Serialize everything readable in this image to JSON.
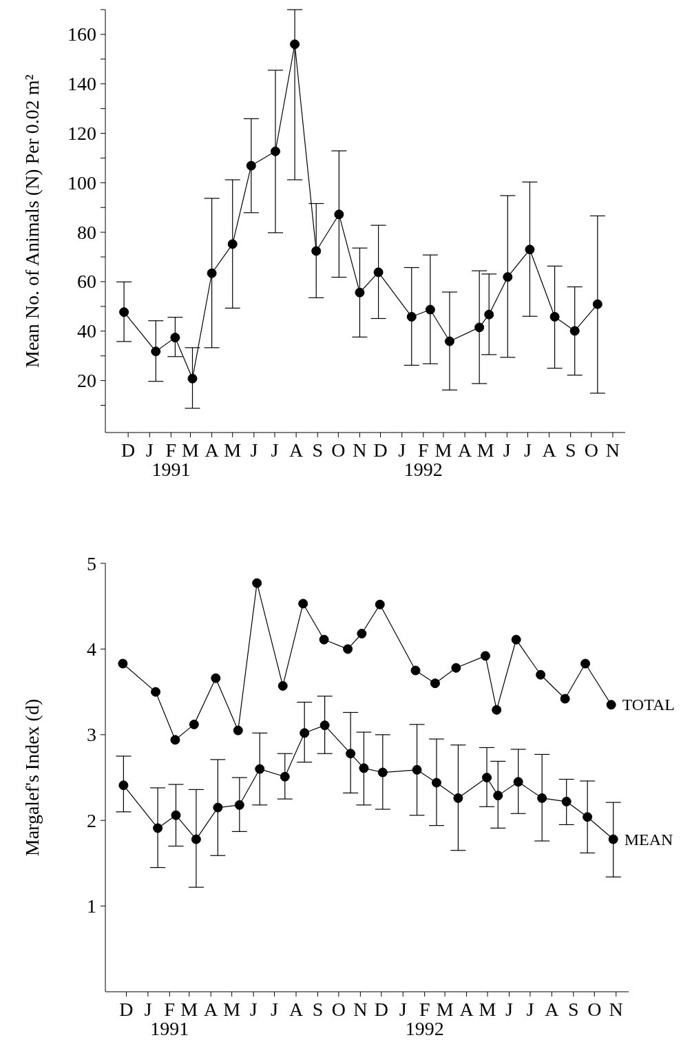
{
  "chart_data": [
    {
      "type": "line",
      "ylabel": "Mean No. of Animals (N) Per 0.02 m²",
      "marker": "circle",
      "line_style": "solid",
      "xlim": [
        "1990-10-29",
        "1992-11-19"
      ],
      "ylim": [
        -1,
        170
      ],
      "xticks": [
        {
          "value": "1990-12",
          "label": "D"
        },
        {
          "value": "1991-01",
          "label": "J"
        },
        {
          "value": "1991-02",
          "label": "F\n1991"
        },
        {
          "value": "1991-03",
          "label": "M"
        },
        {
          "value": "1991-04",
          "label": "A"
        },
        {
          "value": "1991-05",
          "label": "M"
        },
        {
          "value": "1991-06",
          "label": "J"
        },
        {
          "value": "1991-07",
          "label": "J"
        },
        {
          "value": "1991-08",
          "label": "A"
        },
        {
          "value": "1991-09",
          "label": "S"
        },
        {
          "value": "1991-10",
          "label": "O"
        },
        {
          "value": "1991-11",
          "label": "N"
        },
        {
          "value": "1991-12",
          "label": "D"
        },
        {
          "value": "1992-01",
          "label": "J"
        },
        {
          "value": "1992-02",
          "label": "F\n1992"
        },
        {
          "value": "1992-03",
          "label": "M"
        },
        {
          "value": "1992-04",
          "label": "A"
        },
        {
          "value": "1992-05",
          "label": "M"
        },
        {
          "value": "1992-06",
          "label": "J"
        },
        {
          "value": "1992-07",
          "label": "J"
        },
        {
          "value": "1992-08",
          "label": "A"
        },
        {
          "value": "1992-09",
          "label": "S"
        },
        {
          "value": "1992-10",
          "label": "O"
        },
        {
          "value": "1992-11",
          "label": "N"
        }
      ],
      "yticks": [
        {
          "value": 10,
          "label": null
        },
        20,
        {
          "value": 30,
          "label": null
        },
        40,
        {
          "value": 50,
          "label": null
        },
        60,
        {
          "value": 70,
          "label": null
        },
        80,
        {
          "value": 90,
          "label": null
        },
        100,
        {
          "value": 110,
          "label": null
        },
        120,
        {
          "value": 130,
          "label": null
        },
        140,
        {
          "value": 150,
          "label": null
        },
        160,
        {
          "value": 170,
          "label": null
        }
      ],
      "series": [
        {
          "color": "#000000",
          "x": [
            "1990-11-25",
            "1991-01-10",
            "1991-02-07",
            "1991-03-04",
            "1991-04-01",
            "1991-05-01",
            "1991-05-28",
            "1991-07-02",
            "1991-07-30",
            "1991-08-30",
            "1991-10-02",
            "1991-11-01",
            "1991-11-28",
            "1992-01-15",
            "1992-02-11",
            "1992-03-10",
            "1992-04-22",
            "1992-05-06",
            "1992-06-02",
            "1992-07-04",
            "1992-08-09",
            "1992-09-07",
            "1992-10-10"
          ],
          "values": [
            47.7,
            31.8,
            37.4,
            20.8,
            63.4,
            75.2,
            106.9,
            112.7,
            156,
            72.4,
            87.2,
            55.6,
            63.8,
            45.8,
            48.7,
            35.9,
            41.5,
            46.7,
            61.9,
            73,
            45.8,
            40.1,
            50.9
          ],
          "errors": [
            [
              35.8,
              59.9
            ],
            [
              19.7,
              44.2
            ],
            [
              29.7,
              45.6
            ],
            [
              8.8,
              33.3
            ],
            [
              33.3,
              93.7
            ],
            [
              49.3,
              101.2
            ],
            [
              87.9,
              125.9
            ],
            [
              79.8,
              145.5
            ],
            [
              101.2,
              170
            ],
            [
              53.5,
              91.6
            ],
            [
              61.8,
              112.9
            ],
            [
              37.6,
              73.6
            ],
            [
              45.1,
              82.8
            ],
            [
              26.2,
              65.7
            ],
            [
              26.8,
              70.8
            ],
            [
              16.2,
              55.8
            ],
            [
              18.8,
              64.4
            ],
            [
              30.5,
              63.1
            ],
            [
              29.4,
              94.8
            ],
            [
              46,
              100.3
            ],
            [
              25,
              66.3
            ],
            [
              22.2,
              57.9
            ],
            [
              14.9,
              86.6
            ]
          ]
        }
      ]
    },
    {
      "type": "line",
      "ylabel": "Margalef's Index (d)",
      "marker": "circle",
      "line_style": "solid",
      "xlim": [
        "1990-11-01",
        "1992-11-19"
      ],
      "ylim": [
        0,
        5
      ],
      "xticks": [
        {
          "value": "1990-12",
          "label": "D"
        },
        {
          "value": "1991-01",
          "label": "J"
        },
        {
          "value": "1991-02",
          "label": "F\n1991"
        },
        {
          "value": "1991-03",
          "label": "M"
        },
        {
          "value": "1991-04",
          "label": "A"
        },
        {
          "value": "1991-05",
          "label": "M"
        },
        {
          "value": "1991-06",
          "label": "J"
        },
        {
          "value": "1991-07",
          "label": "J"
        },
        {
          "value": "1991-08",
          "label": "A"
        },
        {
          "value": "1991-09",
          "label": "S"
        },
        {
          "value": "1991-10",
          "label": "O"
        },
        {
          "value": "1991-11",
          "label": "N"
        },
        {
          "value": "1991-12",
          "label": "D"
        },
        {
          "value": "1992-01",
          "label": "J"
        },
        {
          "value": "1992-02",
          "label": "F\n1992"
        },
        {
          "value": "1992-03",
          "label": "M"
        },
        {
          "value": "1992-04",
          "label": "A"
        },
        {
          "value": "1992-05",
          "label": "M"
        },
        {
          "value": "1992-06",
          "label": "J"
        },
        {
          "value": "1992-07",
          "label": "J"
        },
        {
          "value": "1992-08",
          "label": "A"
        },
        {
          "value": "1992-09",
          "label": "S"
        },
        {
          "value": "1992-10",
          "label": "O"
        },
        {
          "value": "1992-11",
          "label": "N"
        }
      ],
      "yticks": [
        1,
        2,
        3,
        4,
        5
      ],
      "series": [
        {
          "name": "TOTAL",
          "color": "#000000",
          "x": [
            "1990-11-26",
            "1991-01-12",
            "1991-02-09",
            "1991-03-08",
            "1991-04-08",
            "1991-05-10",
            "1991-06-06",
            "1991-07-13",
            "1991-08-11",
            "1991-09-10",
            "1991-10-14",
            "1991-11-03",
            "1991-11-29",
            "1992-01-19",
            "1992-02-16",
            "1992-03-17",
            "1992-04-28",
            "1992-05-14",
            "1992-06-11",
            "1992-07-16",
            "1992-08-20",
            "1992-09-18",
            "1992-10-25"
          ],
          "values": [
            3.83,
            3.5,
            2.94,
            3.12,
            3.66,
            3.05,
            4.77,
            3.57,
            4.53,
            4.11,
            4.0,
            4.18,
            4.52,
            3.75,
            3.6,
            3.78,
            3.92,
            3.29,
            4.11,
            3.7,
            3.42,
            3.83,
            3.35
          ]
        },
        {
          "name": "MEAN",
          "color": "#000000",
          "x": [
            "1990-11-27",
            "1991-01-15",
            "1991-02-10",
            "1991-03-11",
            "1991-04-11",
            "1991-05-12",
            "1991-06-10",
            "1991-07-16",
            "1991-08-13",
            "1991-09-11",
            "1991-10-18",
            "1991-11-06",
            "1991-12-03",
            "1992-01-21",
            "1992-02-18",
            "1992-03-20",
            "1992-04-30",
            "1992-05-16",
            "1992-06-14",
            "1992-07-18",
            "1992-08-22",
            "1992-09-21",
            "1992-10-28"
          ],
          "values": [
            2.41,
            1.91,
            2.06,
            1.78,
            2.15,
            2.18,
            2.6,
            2.51,
            3.02,
            3.11,
            2.78,
            2.61,
            2.56,
            2.59,
            2.44,
            2.26,
            2.5,
            2.29,
            2.45,
            2.26,
            2.22,
            2.04,
            1.78
          ],
          "errors": [
            [
              2.1,
              2.75
            ],
            [
              1.45,
              2.38
            ],
            [
              1.7,
              2.42
            ],
            [
              1.22,
              2.36
            ],
            [
              1.59,
              2.71
            ],
            [
              1.87,
              2.5
            ],
            [
              2.18,
              3.02
            ],
            [
              2.25,
              2.78
            ],
            [
              2.68,
              3.38
            ],
            [
              2.78,
              3.45
            ],
            [
              2.32,
              3.26
            ],
            [
              2.18,
              3.03
            ],
            [
              2.13,
              3.0
            ],
            [
              2.06,
              3.12
            ],
            [
              1.94,
              2.95
            ],
            [
              1.65,
              2.88
            ],
            [
              2.16,
              2.85
            ],
            [
              1.91,
              2.69
            ],
            [
              2.08,
              2.83
            ],
            [
              1.76,
              2.77
            ],
            [
              1.95,
              2.48
            ],
            [
              1.62,
              2.46
            ],
            [
              1.34,
              2.21
            ]
          ]
        }
      ]
    }
  ]
}
